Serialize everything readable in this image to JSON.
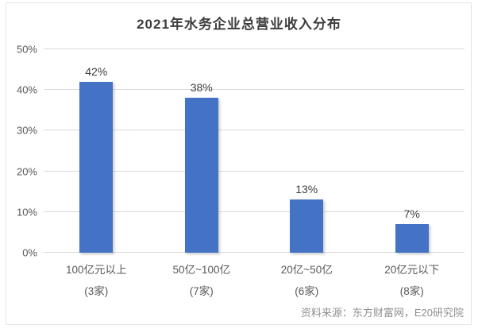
{
  "title": "2021年水务企业总营业收入分布",
  "source": "资料来源：东方财富网，E20研究院",
  "colors": {
    "bar": "#4472c4",
    "grid": "#d9d9d9",
    "title_text": "#3d3d3d",
    "axis_text": "#595959",
    "value_text": "#404040",
    "source_text": "#8f8f8f"
  },
  "chart_data": {
    "type": "bar",
    "title": "2021年水务企业总营业收入分布",
    "categories": [
      "100亿元以上",
      "50亿~100亿",
      "20亿~50亿",
      "20亿元以下"
    ],
    "category_sublabels": [
      "(3家)",
      "(7家)",
      "(6家)",
      "(8家)"
    ],
    "values": [
      42,
      38,
      13,
      7
    ],
    "value_labels": [
      "42%",
      "38%",
      "13%",
      "7%"
    ],
    "xlabel": "",
    "ylabel": "",
    "ylim": [
      0,
      50
    ],
    "ytick_labels": [
      "0%",
      "10%",
      "20%",
      "30%",
      "40%",
      "50%"
    ],
    "grid": true,
    "legend_position": "none",
    "annotation": "资料来源：东方财富网，E20研究院"
  }
}
